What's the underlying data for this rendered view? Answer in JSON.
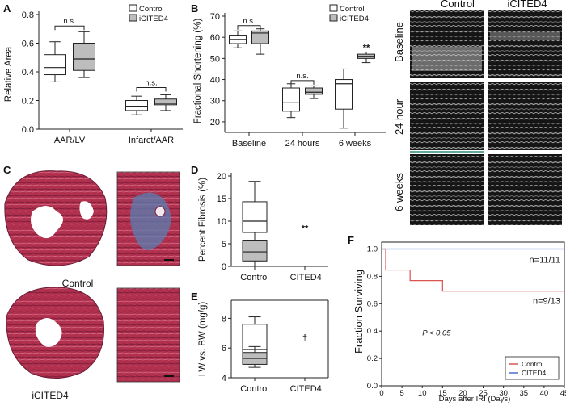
{
  "figure": {
    "panels": {
      "A": "A",
      "B": "B",
      "C": "C",
      "D": "D",
      "E": "E",
      "F": "F"
    },
    "echo": {
      "col_control": "Control",
      "col_icited4": "iCITED4",
      "row_baseline": "Baseline",
      "row_24h": "24 hour",
      "row_6w": "6 weeks"
    },
    "histology": {
      "label_control": "Control",
      "label_icited4": "iCITED4"
    },
    "colors": {
      "control_box": "#ffffff",
      "treatment_box": "#bdbdbd",
      "km_control": "#d9534f",
      "km_cited4": "#4a6fd1"
    }
  },
  "chart_data": [
    {
      "id": "A",
      "type": "box",
      "ylabel": "Relative Area",
      "ylim": [
        0.0,
        0.8
      ],
      "yticks": [
        "0.0",
        "0.2",
        "0.4",
        "0.6",
        "0.8"
      ],
      "categories": [
        "AAR/LV",
        "Infarct/AAR"
      ],
      "legend": [
        "Control",
        "iCITED4"
      ],
      "legend_placement": "top-right",
      "series": [
        {
          "name": "Control",
          "boxes": [
            {
              "min": 0.33,
              "q1": 0.38,
              "median": 0.43,
              "q3": 0.52,
              "max": 0.61
            },
            {
              "min": 0.1,
              "q1": 0.13,
              "median": 0.16,
              "q3": 0.2,
              "max": 0.23
            }
          ]
        },
        {
          "name": "iCITED4",
          "boxes": [
            {
              "min": 0.36,
              "q1": 0.41,
              "median": 0.49,
              "q3": 0.6,
              "max": 0.68
            },
            {
              "min": 0.13,
              "q1": 0.17,
              "median": 0.18,
              "q3": 0.21,
              "max": 0.24
            }
          ]
        }
      ],
      "annotations": [
        "n.s.",
        "n.s."
      ]
    },
    {
      "id": "B",
      "type": "box",
      "ylabel": "Fractional Shortening (%)",
      "ylim": [
        15,
        70
      ],
      "yticks": [
        "20",
        "30",
        "40",
        "50",
        "60",
        "70"
      ],
      "categories": [
        "Baseline",
        "24 hours",
        "6 weeks"
      ],
      "legend": [
        "Control",
        "iCITED4"
      ],
      "legend_placement": "top-right",
      "series": [
        {
          "name": "Control",
          "boxes": [
            {
              "min": 55,
              "q1": 57,
              "median": 59,
              "q3": 61,
              "max": 63
            },
            {
              "min": 22,
              "q1": 25,
              "median": 29,
              "q3": 36,
              "max": 38
            },
            {
              "min": 17,
              "q1": 26,
              "median": 38,
              "q3": 40,
              "max": 45
            }
          ]
        },
        {
          "name": "iCITED4",
          "boxes": [
            {
              "min": 52,
              "q1": 57,
              "median": 62,
              "q3": 63,
              "max": 64
            },
            {
              "min": 31,
              "q1": 33,
              "median": 34,
              "q3": 36,
              "max": 37
            },
            {
              "min": 48,
              "q1": 50,
              "median": 51,
              "q3": 52,
              "max": 53
            }
          ]
        }
      ],
      "annotations": [
        "n.s.",
        "n.s.",
        "**"
      ]
    },
    {
      "id": "D",
      "type": "box",
      "ylabel": "Percent Fibrosis (%)",
      "ylim": [
        0,
        20
      ],
      "yticks": [
        "0",
        "5",
        "10",
        "15",
        "20"
      ],
      "categories": [
        "Control",
        "iCITED4"
      ],
      "series": [
        {
          "name": "Control",
          "boxes": [
            {
              "min": 0,
              "q1": 7.5,
              "median": 10,
              "q3": 14.3,
              "max": 18.8
            }
          ]
        },
        {
          "name": "iCITED4",
          "boxes": [
            {
              "min": 1.0,
              "q1": 1.2,
              "median": 3.2,
              "q3": 5.8,
              "max": 5.8
            }
          ]
        }
      ],
      "annotations": [
        "**"
      ]
    },
    {
      "id": "E",
      "type": "box",
      "ylabel": "LW vs. BW (mg/g)",
      "ylim": [
        4,
        9
      ],
      "yticks": [
        "4",
        "6",
        "8"
      ],
      "categories": [
        "Control",
        "iCITED4"
      ],
      "series": [
        {
          "name": "Control",
          "boxes": [
            {
              "min": 5.0,
              "q1": 5.4,
              "median": 5.9,
              "q3": 7.6,
              "max": 8.1
            }
          ]
        },
        {
          "name": "iCITED4",
          "boxes": [
            {
              "min": 4.7,
              "q1": 4.9,
              "median": 5.3,
              "q3": 5.7,
              "max": 6.1
            }
          ]
        }
      ],
      "annotations": [
        "†"
      ]
    },
    {
      "id": "F",
      "type": "line",
      "xlabel": "Days after IRI (Days)",
      "ylabel": "Fraction Surviving",
      "xlim": [
        0,
        45
      ],
      "ylim": [
        0.0,
        1.05
      ],
      "xticks": [
        "0",
        "5",
        "10",
        "15",
        "20",
        "25",
        "30",
        "35",
        "40",
        "45"
      ],
      "yticks": [
        "0.0",
        "0.2",
        "0.4",
        "0.6",
        "0.8",
        "1.0"
      ],
      "legend_placement": "bottom-right",
      "series": [
        {
          "name": "Control",
          "x": [
            0,
            1,
            7,
            15,
            45
          ],
          "y": [
            1.0,
            0.846,
            0.769,
            0.692,
            0.692
          ]
        },
        {
          "name": "CITED4",
          "x": [
            0,
            45
          ],
          "y": [
            1.0,
            1.0
          ]
        }
      ],
      "annotations": [
        "n=11/11",
        "n=9/13",
        "P < 0.05"
      ]
    }
  ]
}
